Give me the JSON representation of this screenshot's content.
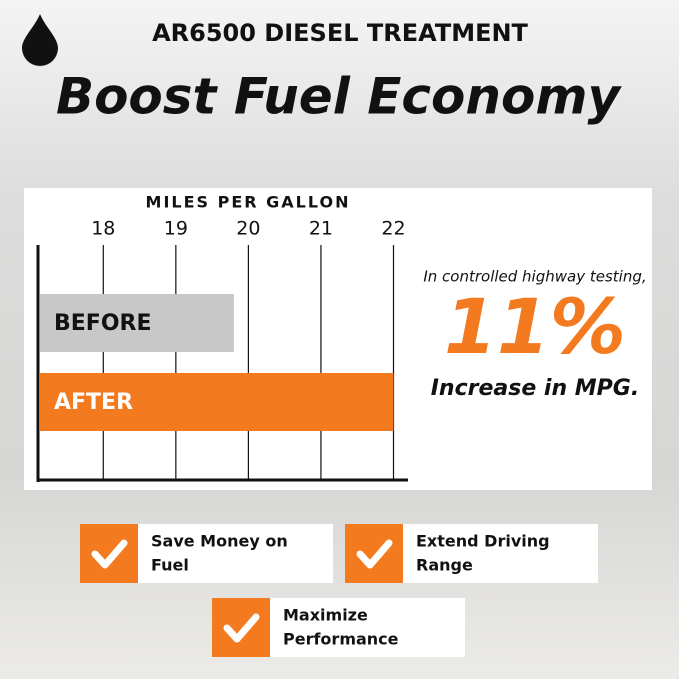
{
  "header": {
    "subtitle": "AR6500 DIESEL TREATMENT",
    "title": "Boost Fuel Economy"
  },
  "chart_data": {
    "type": "bar",
    "orientation": "horizontal",
    "x_label": "MILES PER GALLON",
    "categories": [
      "BEFORE",
      "AFTER"
    ],
    "values": [
      19.8,
      22
    ],
    "colors": [
      "#c8c8c8",
      "#f47a20"
    ],
    "xlim": [
      17.1,
      22.2
    ],
    "xticks": [
      18,
      19,
      20,
      21,
      22
    ],
    "grid": true
  },
  "callout": {
    "intro": "In controlled highway testing,",
    "figure": "11%",
    "text": "Increase in MPG."
  },
  "benefits": [
    {
      "lines": [
        "Save Money on",
        "Fuel"
      ]
    },
    {
      "lines": [
        "Extend Driving",
        "Range"
      ]
    },
    {
      "lines": [
        "Maximize",
        "Performance"
      ]
    }
  ]
}
